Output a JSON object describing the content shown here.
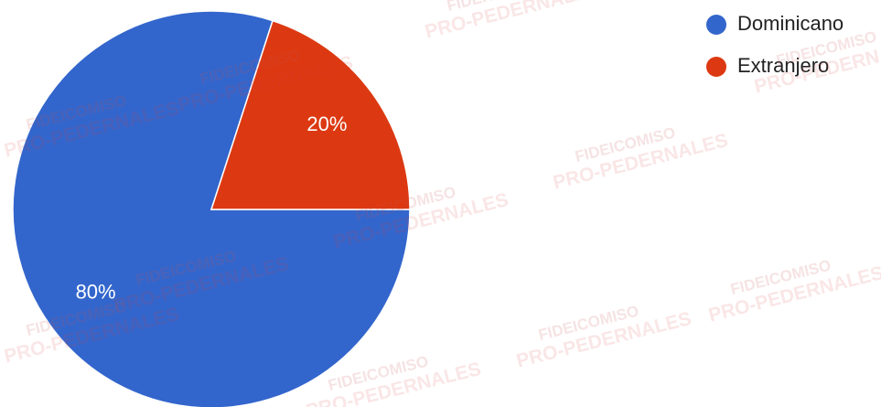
{
  "chart_data": {
    "type": "pie",
    "categories": [
      "Dominicano",
      "Extranjero"
    ],
    "values": [
      80,
      20
    ],
    "value_labels": [
      "80%",
      "20%"
    ],
    "colors": [
      "#3366cc",
      "#dc3912"
    ],
    "start_angle": 90,
    "legend": "top-right",
    "watermark": [
      "FIDEICOMISO",
      "PRO-PEDERNALES"
    ]
  }
}
